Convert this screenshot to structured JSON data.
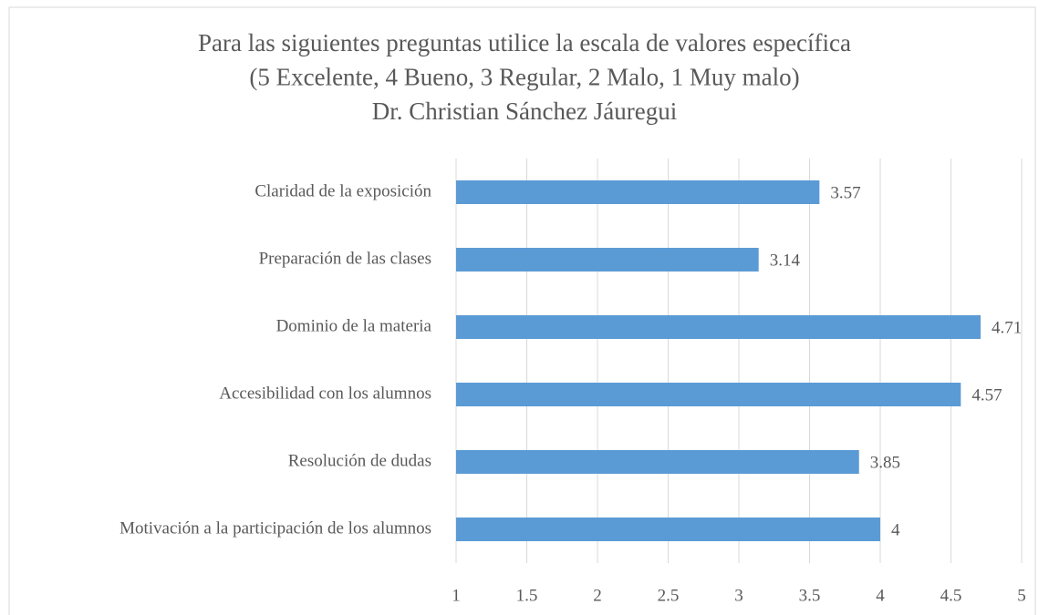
{
  "chart_data": {
    "type": "bar",
    "orientation": "horizontal",
    "title": [
      "Para las siguientes preguntas utilice la escala de valores específica",
      "(5 Excelente, 4 Bueno, 3 Regular, 2 Malo, 1 Muy malo)",
      "Dr. Christian Sánchez Jáuregui"
    ],
    "categories": [
      "Claridad de la exposición",
      "Preparación de las clases",
      "Dominio de la materia",
      "Accesibilidad con los alumnos",
      "Resolución de dudas",
      "Motivación a la participación de los alumnos"
    ],
    "values": [
      3.57,
      3.14,
      4.71,
      4.57,
      3.85,
      4
    ],
    "color": "#5b9bd5",
    "xlim": [
      1,
      5
    ],
    "xticks": [
      1,
      1.5,
      2,
      2.5,
      3,
      3.5,
      4,
      4.5,
      5
    ],
    "grid": true
  }
}
